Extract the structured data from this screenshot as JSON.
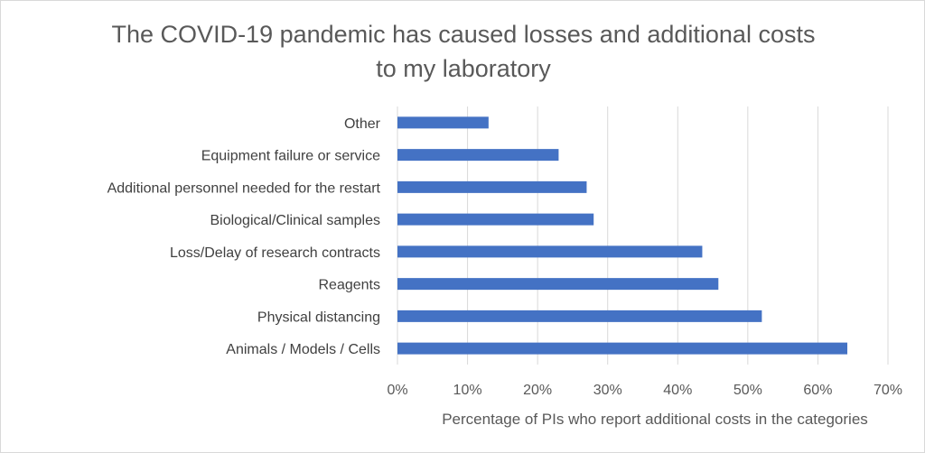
{
  "chart_data": {
    "type": "bar",
    "orientation": "horizontal",
    "title_lines": [
      "The COVID-19 pandemic has caused losses and additional costs",
      "to my laboratory"
    ],
    "xlabel": "Percentage of PIs who report additional costs in the categories",
    "ylabel": "",
    "xlim": [
      0,
      0.7
    ],
    "xticks": [
      "0%",
      "10%",
      "20%",
      "30%",
      "40%",
      "50%",
      "60%",
      "70%"
    ],
    "categories": [
      "Other",
      "Equipment failure or service",
      "Additional personnel needed for the restart",
      "Biological/Clinical samples",
      "Loss/Delay of research contracts",
      "Reagents",
      "Physical distancing",
      "Animals / Models / Cells"
    ],
    "values": [
      0.13,
      0.23,
      0.27,
      0.28,
      0.435,
      0.458,
      0.52,
      0.642
    ],
    "bar_color": "#4472c4",
    "grid": true,
    "legend": "none"
  }
}
